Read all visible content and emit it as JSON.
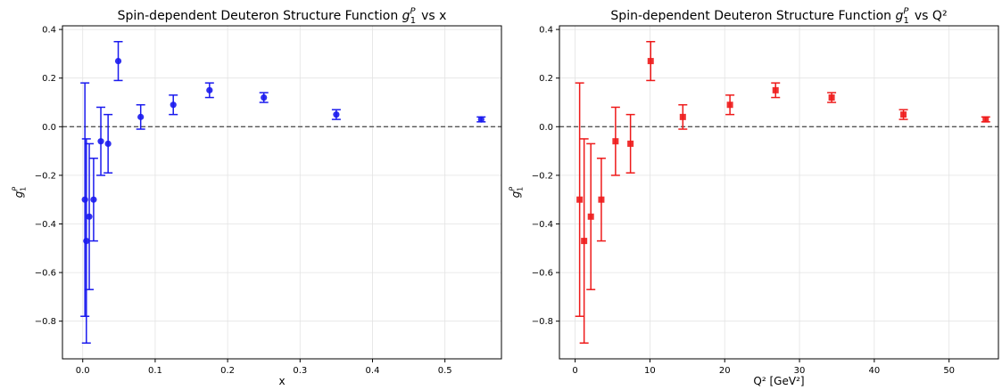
{
  "chart_data": [
    {
      "type": "scatter",
      "title": "Spin-dependent Deuteron Structure Function",
      "title_symbol": {
        "base": "g",
        "sub": "1",
        "sup": "P"
      },
      "title_suffix": "vs x",
      "xlabel": "x",
      "ylabel_symbol": {
        "base": "g",
        "sub": "1",
        "sup": "P"
      },
      "xlim": [
        -0.028,
        0.578
      ],
      "ylim": [
        -0.955,
        0.415
      ],
      "xticks": [
        0.0,
        0.1,
        0.2,
        0.3,
        0.4,
        0.5
      ],
      "xtick_labels": [
        "0.0",
        "0.1",
        "0.2",
        "0.3",
        "0.4",
        "0.5"
      ],
      "yticks": [
        0.4,
        0.2,
        0.0,
        -0.2,
        -0.4,
        -0.6,
        -0.8
      ],
      "ytick_labels": [
        "0.4",
        "0.2",
        "0.0",
        "−0.2",
        "−0.4",
        "−0.6",
        "−0.8"
      ],
      "grid": true,
      "reference_line": {
        "y": 0.0,
        "style": "dashed",
        "color": "#555555"
      },
      "marker": "circle",
      "color": "#1a1aee",
      "points": [
        {
          "x": 0.003,
          "y": -0.3,
          "err": 0.48
        },
        {
          "x": 0.005,
          "y": -0.47,
          "err": 0.42
        },
        {
          "x": 0.009,
          "y": -0.37,
          "err": 0.3
        },
        {
          "x": 0.015,
          "y": -0.3,
          "err": 0.17
        },
        {
          "x": 0.025,
          "y": -0.06,
          "err": 0.14
        },
        {
          "x": 0.035,
          "y": -0.07,
          "err": 0.12
        },
        {
          "x": 0.049,
          "y": 0.27,
          "err": 0.08
        },
        {
          "x": 0.08,
          "y": 0.04,
          "err": 0.05
        },
        {
          "x": 0.125,
          "y": 0.09,
          "err": 0.04
        },
        {
          "x": 0.175,
          "y": 0.15,
          "err": 0.03
        },
        {
          "x": 0.25,
          "y": 0.12,
          "err": 0.02
        },
        {
          "x": 0.35,
          "y": 0.05,
          "err": 0.02
        },
        {
          "x": 0.55,
          "y": 0.03,
          "err": 0.01
        }
      ]
    },
    {
      "type": "scatter",
      "title": "Spin-dependent Deuteron Structure Function",
      "title_symbol": {
        "base": "g",
        "sub": "1",
        "sup": "P"
      },
      "title_suffix": "vs Q²",
      "xlabel": "Q² [GeV²]",
      "ylabel_symbol": {
        "base": "g",
        "sub": "1",
        "sup": "P"
      },
      "xlim": [
        -2.1,
        56.6
      ],
      "ylim": [
        -0.955,
        0.415
      ],
      "xticks": [
        0,
        10,
        20,
        30,
        40,
        50
      ],
      "xtick_labels": [
        "0",
        "10",
        "20",
        "30",
        "40",
        "50"
      ],
      "yticks": [
        0.4,
        0.2,
        0.0,
        -0.2,
        -0.4,
        -0.6,
        -0.8
      ],
      "ytick_labels": [
        "0.4",
        "0.2",
        "0.0",
        "−0.2",
        "−0.4",
        "−0.6",
        "−0.8"
      ],
      "grid": true,
      "reference_line": {
        "y": 0.0,
        "style": "dashed",
        "color": "#555555"
      },
      "marker": "square",
      "color": "#ee1a1a",
      "points": [
        {
          "x": 0.6,
          "y": -0.3,
          "err": 0.48
        },
        {
          "x": 1.2,
          "y": -0.47,
          "err": 0.42
        },
        {
          "x": 2.1,
          "y": -0.37,
          "err": 0.3
        },
        {
          "x": 3.5,
          "y": -0.3,
          "err": 0.17
        },
        {
          "x": 5.4,
          "y": -0.06,
          "err": 0.14
        },
        {
          "x": 7.4,
          "y": -0.07,
          "err": 0.12
        },
        {
          "x": 10.1,
          "y": 0.27,
          "err": 0.08
        },
        {
          "x": 14.4,
          "y": 0.04,
          "err": 0.05
        },
        {
          "x": 20.7,
          "y": 0.09,
          "err": 0.04
        },
        {
          "x": 26.8,
          "y": 0.15,
          "err": 0.03
        },
        {
          "x": 34.3,
          "y": 0.12,
          "err": 0.02
        },
        {
          "x": 43.9,
          "y": 0.05,
          "err": 0.02
        },
        {
          "x": 54.9,
          "y": 0.03,
          "err": 0.01
        }
      ]
    }
  ]
}
